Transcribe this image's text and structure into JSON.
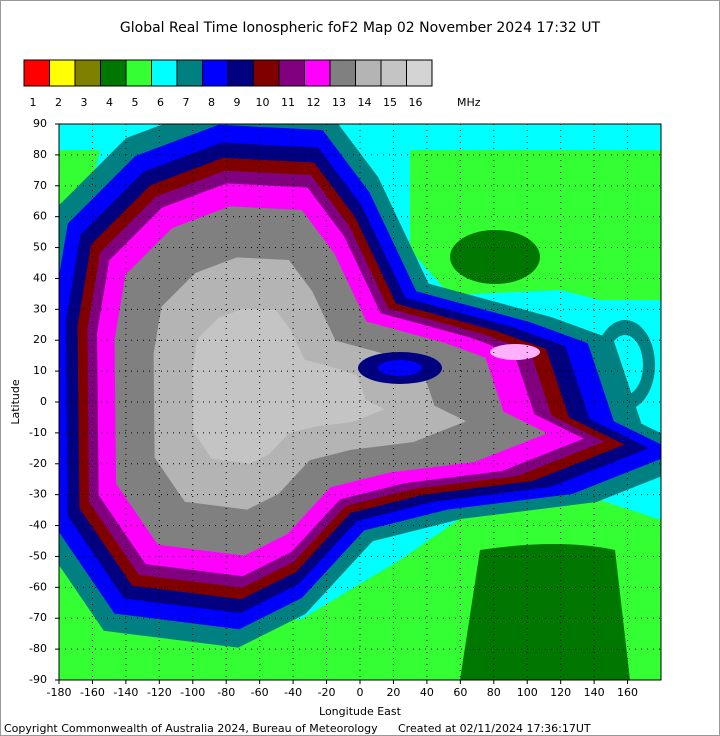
{
  "map": {
    "title": "Global Real Time Ionospheric foF2 Map  02 November 2024 17:32 UT",
    "legend": {
      "colors": [
        "#ff0000",
        "#ffff00",
        "#808000",
        "#007700",
        "#33ff33",
        "#00ffff",
        "#008080",
        "#0000ff",
        "#000080",
        "#800000",
        "#800080",
        "#ff00ff",
        "#808080",
        "#b4b4b4",
        "#c4c4c4",
        "#d4d4d4"
      ],
      "labels": [
        1,
        2,
        3,
        4,
        5,
        6,
        7,
        8,
        9,
        10,
        11,
        12,
        13,
        14,
        15,
        16
      ],
      "unit": "MHz"
    },
    "x_label": "Longitude East",
    "y_label": "Latitude",
    "xlim": [
      -180,
      180
    ],
    "ylim": [
      -90,
      90
    ],
    "xticks": [
      -180,
      -160,
      -140,
      -120,
      -100,
      -80,
      -60,
      -40,
      -20,
      0,
      20,
      40,
      60,
      80,
      100,
      120,
      140,
      160
    ],
    "yticks": [
      -90,
      -80,
      -70,
      -60,
      -50,
      -40,
      -30,
      -20,
      -10,
      0,
      10,
      20,
      30,
      40,
      50,
      60,
      70,
      80,
      90
    ],
    "copyright": "Copyright Commonwealth of Australia 2024, Bureau of Meteorology",
    "created": "Created at 02/11/2024 17:36:17UT"
  }
}
